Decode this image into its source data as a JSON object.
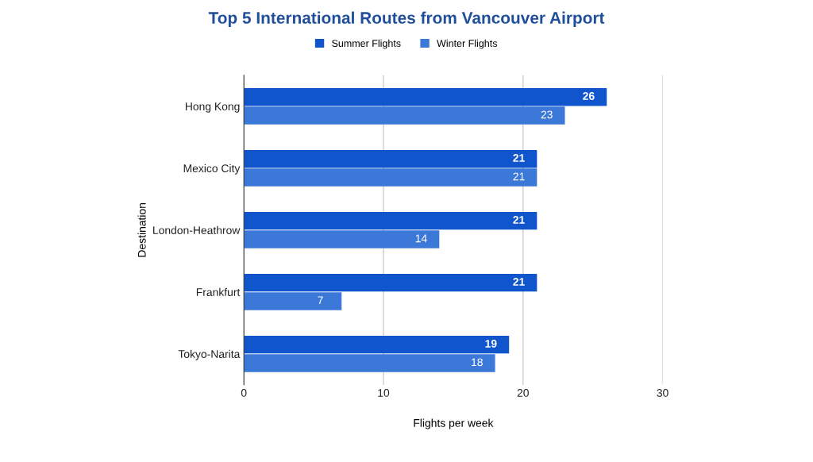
{
  "chart_data": {
    "type": "bar",
    "orientation": "horizontal",
    "title": "Top 5 International Routes from Vancouver Airport",
    "xlabel": "Flights per week",
    "ylabel": "Destination",
    "categories": [
      "Hong Kong",
      "Mexico City",
      "London-Heathrow",
      "Frankfurt",
      "Tokyo-Narita"
    ],
    "series": [
      {
        "name": "Summer Flights",
        "color": "#1155cc",
        "values": [
          26,
          21,
          21,
          21,
          19
        ]
      },
      {
        "name": "Winter Flights",
        "color": "#3c78d8",
        "values": [
          23,
          21,
          14,
          7,
          18
        ]
      }
    ],
    "xlim": [
      0,
      30
    ],
    "xticks": [
      0,
      10,
      20,
      30
    ],
    "grid": "x",
    "legend": "top",
    "data_labels": true
  }
}
